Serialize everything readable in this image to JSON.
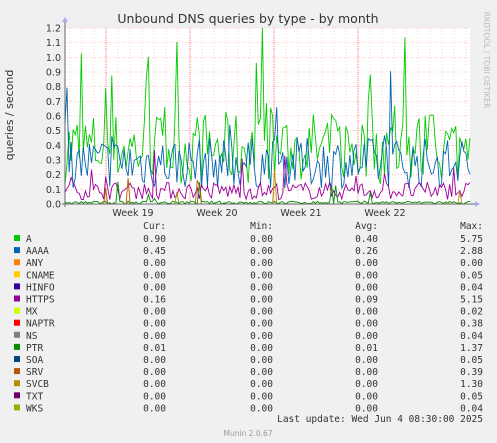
{
  "colors": {
    "background": "#f0f0f0",
    "plot_background": "#ffffff",
    "grid": "#ff9999",
    "axis": "#666666",
    "text": "#333333"
  },
  "chart_data": {
    "type": "line",
    "title": "Unbound DNS queries by type - by month",
    "ylabel": "queries / second",
    "side_label": "RRDTOOL / TOBI OETIKER",
    "ylim": [
      0,
      1.2
    ],
    "yticks": [
      "0.0",
      "0.1",
      "0.2",
      "0.3",
      "0.4",
      "0.5",
      "0.6",
      "0.7",
      "0.8",
      "0.9",
      "1.0",
      "1.1",
      "1.2"
    ],
    "xticks": [
      "Week 19",
      "Week 20",
      "Week 21",
      "Week 22"
    ],
    "grid": true,
    "legend_headers": {
      "cur": "Cur:",
      "min": "Min:",
      "avg": "Avg:",
      "max": "Max:"
    },
    "series": [
      {
        "name": "A",
        "color": "#00cc00",
        "cur": "0.90",
        "min": "0.00",
        "avg": "0.40",
        "max": "5.75"
      },
      {
        "name": "AAAA",
        "color": "#0066b3",
        "cur": "0.45",
        "min": "0.00",
        "avg": "0.26",
        "max": "2.88"
      },
      {
        "name": "ANY",
        "color": "#ff8000",
        "cur": "0.00",
        "min": "0.00",
        "avg": "0.00",
        "max": "0.00"
      },
      {
        "name": "CNAME",
        "color": "#ffcc00",
        "cur": "0.00",
        "min": "0.00",
        "avg": "0.00",
        "max": "0.05"
      },
      {
        "name": "HINFO",
        "color": "#330099",
        "cur": "0.00",
        "min": "0.00",
        "avg": "0.00",
        "max": "0.04"
      },
      {
        "name": "HTTPS",
        "color": "#990099",
        "cur": "0.16",
        "min": "0.00",
        "avg": "0.09",
        "max": "5.15"
      },
      {
        "name": "MX",
        "color": "#ccff00",
        "cur": "0.00",
        "min": "0.00",
        "avg": "0.00",
        "max": "0.02"
      },
      {
        "name": "NAPTR",
        "color": "#ff0000",
        "cur": "0.00",
        "min": "0.00",
        "avg": "0.00",
        "max": "0.38"
      },
      {
        "name": "NS",
        "color": "#808080",
        "cur": "0.00",
        "min": "0.00",
        "avg": "0.00",
        "max": "0.04"
      },
      {
        "name": "PTR",
        "color": "#008f00",
        "cur": "0.01",
        "min": "0.00",
        "avg": "0.01",
        "max": "1.37"
      },
      {
        "name": "SOA",
        "color": "#00487d",
        "cur": "0.00",
        "min": "0.00",
        "avg": "0.00",
        "max": "0.05"
      },
      {
        "name": "SRV",
        "color": "#b35a00",
        "cur": "0.00",
        "min": "0.00",
        "avg": "0.00",
        "max": "0.39"
      },
      {
        "name": "SVCB",
        "color": "#b38f00",
        "cur": "0.00",
        "min": "0.00",
        "avg": "0.00",
        "max": "1.30"
      },
      {
        "name": "TXT",
        "color": "#6b006b",
        "cur": "0.00",
        "min": "0.00",
        "avg": "0.00",
        "max": "0.05"
      },
      {
        "name": "WKS",
        "color": "#8fb300",
        "cur": "0.00",
        "min": "0.00",
        "avg": "0.00",
        "max": "0.04"
      }
    ],
    "last_update": "Last update: Wed Jun  4 08:30:00 2025",
    "footer": "Munin 2.0.67"
  }
}
